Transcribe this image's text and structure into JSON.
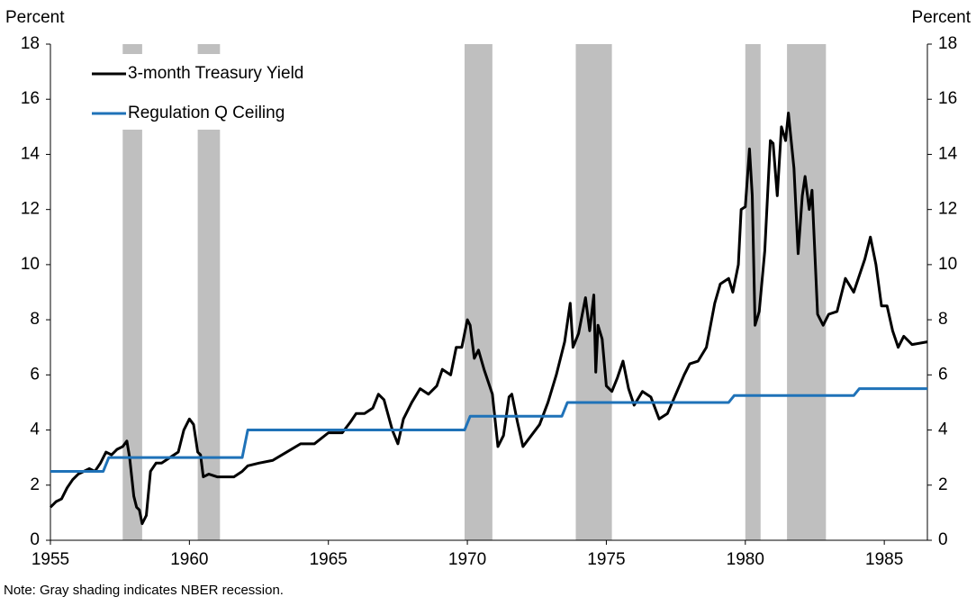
{
  "chart_data": {
    "type": "line",
    "y_label": "Percent",
    "y2_label": "Percent",
    "note": "Note: Gray shading indicates NBER recession.",
    "xlim": [
      1955,
      1986.55
    ],
    "xticks": [
      1955,
      1960,
      1965,
      1970,
      1975,
      1980,
      1985
    ],
    "ylim": [
      0,
      18
    ],
    "yticks": [
      0,
      2,
      4,
      6,
      8,
      10,
      12,
      14,
      16,
      18
    ],
    "y2lim": [
      0,
      18
    ],
    "y2ticks": [
      0,
      2,
      4,
      6,
      8,
      10,
      12,
      14,
      16,
      18
    ],
    "legend": "upper left",
    "recession_color": "#bfbfbf",
    "recessions": [
      [
        1957.6,
        1958.3
      ],
      [
        1960.3,
        1961.1
      ],
      [
        1969.9,
        1970.9
      ],
      [
        1973.9,
        1975.2
      ],
      [
        1980.0,
        1980.55
      ],
      [
        1981.5,
        1982.9
      ]
    ],
    "series": [
      {
        "name": "3-month Treasury Yield",
        "color": "#000000",
        "x": [
          1955.0,
          1955.2,
          1955.4,
          1955.6,
          1955.8,
          1956.0,
          1956.2,
          1956.4,
          1956.6,
          1956.8,
          1957.0,
          1957.2,
          1957.4,
          1957.6,
          1957.75,
          1957.85,
          1958.0,
          1958.1,
          1958.2,
          1958.3,
          1958.45,
          1958.6,
          1958.8,
          1959.0,
          1959.3,
          1959.6,
          1959.8,
          1960.0,
          1960.15,
          1960.3,
          1960.4,
          1960.5,
          1960.7,
          1961.0,
          1961.3,
          1961.6,
          1961.9,
          1962.1,
          1962.5,
          1963.0,
          1963.5,
          1964.0,
          1964.5,
          1965.0,
          1965.5,
          1965.8,
          1966.0,
          1966.3,
          1966.6,
          1966.8,
          1967.0,
          1967.3,
          1967.5,
          1967.7,
          1968.0,
          1968.3,
          1968.6,
          1968.9,
          1969.1,
          1969.4,
          1969.6,
          1969.8,
          1970.0,
          1970.1,
          1970.25,
          1970.4,
          1970.6,
          1970.9,
          1971.1,
          1971.3,
          1971.5,
          1971.6,
          1971.8,
          1972.0,
          1972.3,
          1972.6,
          1972.9,
          1973.2,
          1973.5,
          1973.7,
          1973.8,
          1974.0,
          1974.25,
          1974.4,
          1974.55,
          1974.62,
          1974.7,
          1974.85,
          1975.0,
          1975.2,
          1975.4,
          1975.6,
          1975.8,
          1976.0,
          1976.3,
          1976.6,
          1976.9,
          1977.2,
          1977.5,
          1977.8,
          1978.0,
          1978.3,
          1978.6,
          1978.9,
          1979.1,
          1979.4,
          1979.55,
          1979.75,
          1979.85,
          1980.0,
          1980.15,
          1980.25,
          1980.35,
          1980.5,
          1980.7,
          1980.9,
          1981.0,
          1981.15,
          1981.3,
          1981.45,
          1981.55,
          1981.75,
          1981.9,
          1982.05,
          1982.15,
          1982.3,
          1982.4,
          1982.6,
          1982.8,
          1983.0,
          1983.3,
          1983.6,
          1983.9,
          1984.1,
          1984.3,
          1984.5,
          1984.7,
          1984.9,
          1985.1,
          1985.3,
          1985.5,
          1985.7,
          1986.0,
          1986.55
        ],
        "values": [
          1.2,
          1.4,
          1.5,
          1.9,
          2.2,
          2.4,
          2.5,
          2.6,
          2.5,
          2.8,
          3.2,
          3.1,
          3.3,
          3.4,
          3.6,
          3.0,
          1.6,
          1.2,
          1.1,
          0.6,
          0.9,
          2.5,
          2.8,
          2.8,
          3.0,
          3.2,
          4.0,
          4.4,
          4.2,
          3.2,
          3.1,
          2.3,
          2.4,
          2.3,
          2.3,
          2.3,
          2.5,
          2.7,
          2.8,
          2.9,
          3.2,
          3.5,
          3.5,
          3.9,
          3.9,
          4.3,
          4.6,
          4.6,
          4.8,
          5.3,
          5.1,
          4.0,
          3.5,
          4.4,
          5.0,
          5.5,
          5.3,
          5.6,
          6.2,
          6.0,
          7.0,
          7.0,
          8.0,
          7.8,
          6.6,
          6.9,
          6.2,
          5.3,
          3.4,
          3.8,
          5.2,
          5.3,
          4.3,
          3.4,
          3.8,
          4.2,
          5.0,
          6.0,
          7.2,
          8.6,
          7.0,
          7.5,
          8.8,
          7.6,
          8.9,
          6.1,
          7.8,
          7.3,
          5.6,
          5.4,
          5.9,
          6.5,
          5.5,
          4.9,
          5.4,
          5.2,
          4.4,
          4.6,
          5.3,
          6.0,
          6.4,
          6.5,
          7.0,
          8.6,
          9.3,
          9.5,
          9.0,
          10.0,
          12.0,
          12.1,
          14.2,
          12.5,
          7.8,
          8.3,
          10.5,
          14.5,
          14.4,
          12.5,
          15.0,
          14.5,
          15.5,
          13.5,
          10.4,
          12.5,
          13.2,
          12.0,
          12.7,
          8.2,
          7.8,
          8.2,
          8.3,
          9.5,
          9.0,
          9.6,
          10.2,
          11.0,
          10.0,
          8.5,
          8.5,
          7.6,
          7.0,
          7.4,
          7.1,
          7.2
        ]
      },
      {
        "name": "Regulation Q Ceiling",
        "color": "#1f72b8",
        "x": [
          1955,
          1956.9,
          1957.1,
          1961.9,
          1962.1,
          1969.9,
          1970.1,
          1973.4,
          1973.6,
          1979.4,
          1979.6,
          1983.9,
          1984.1,
          1986.55
        ],
        "values": [
          2.5,
          2.5,
          3,
          3,
          4,
          4,
          4.5,
          4.5,
          5,
          5,
          5.25,
          5.25,
          5.5,
          5.5
        ]
      }
    ]
  }
}
